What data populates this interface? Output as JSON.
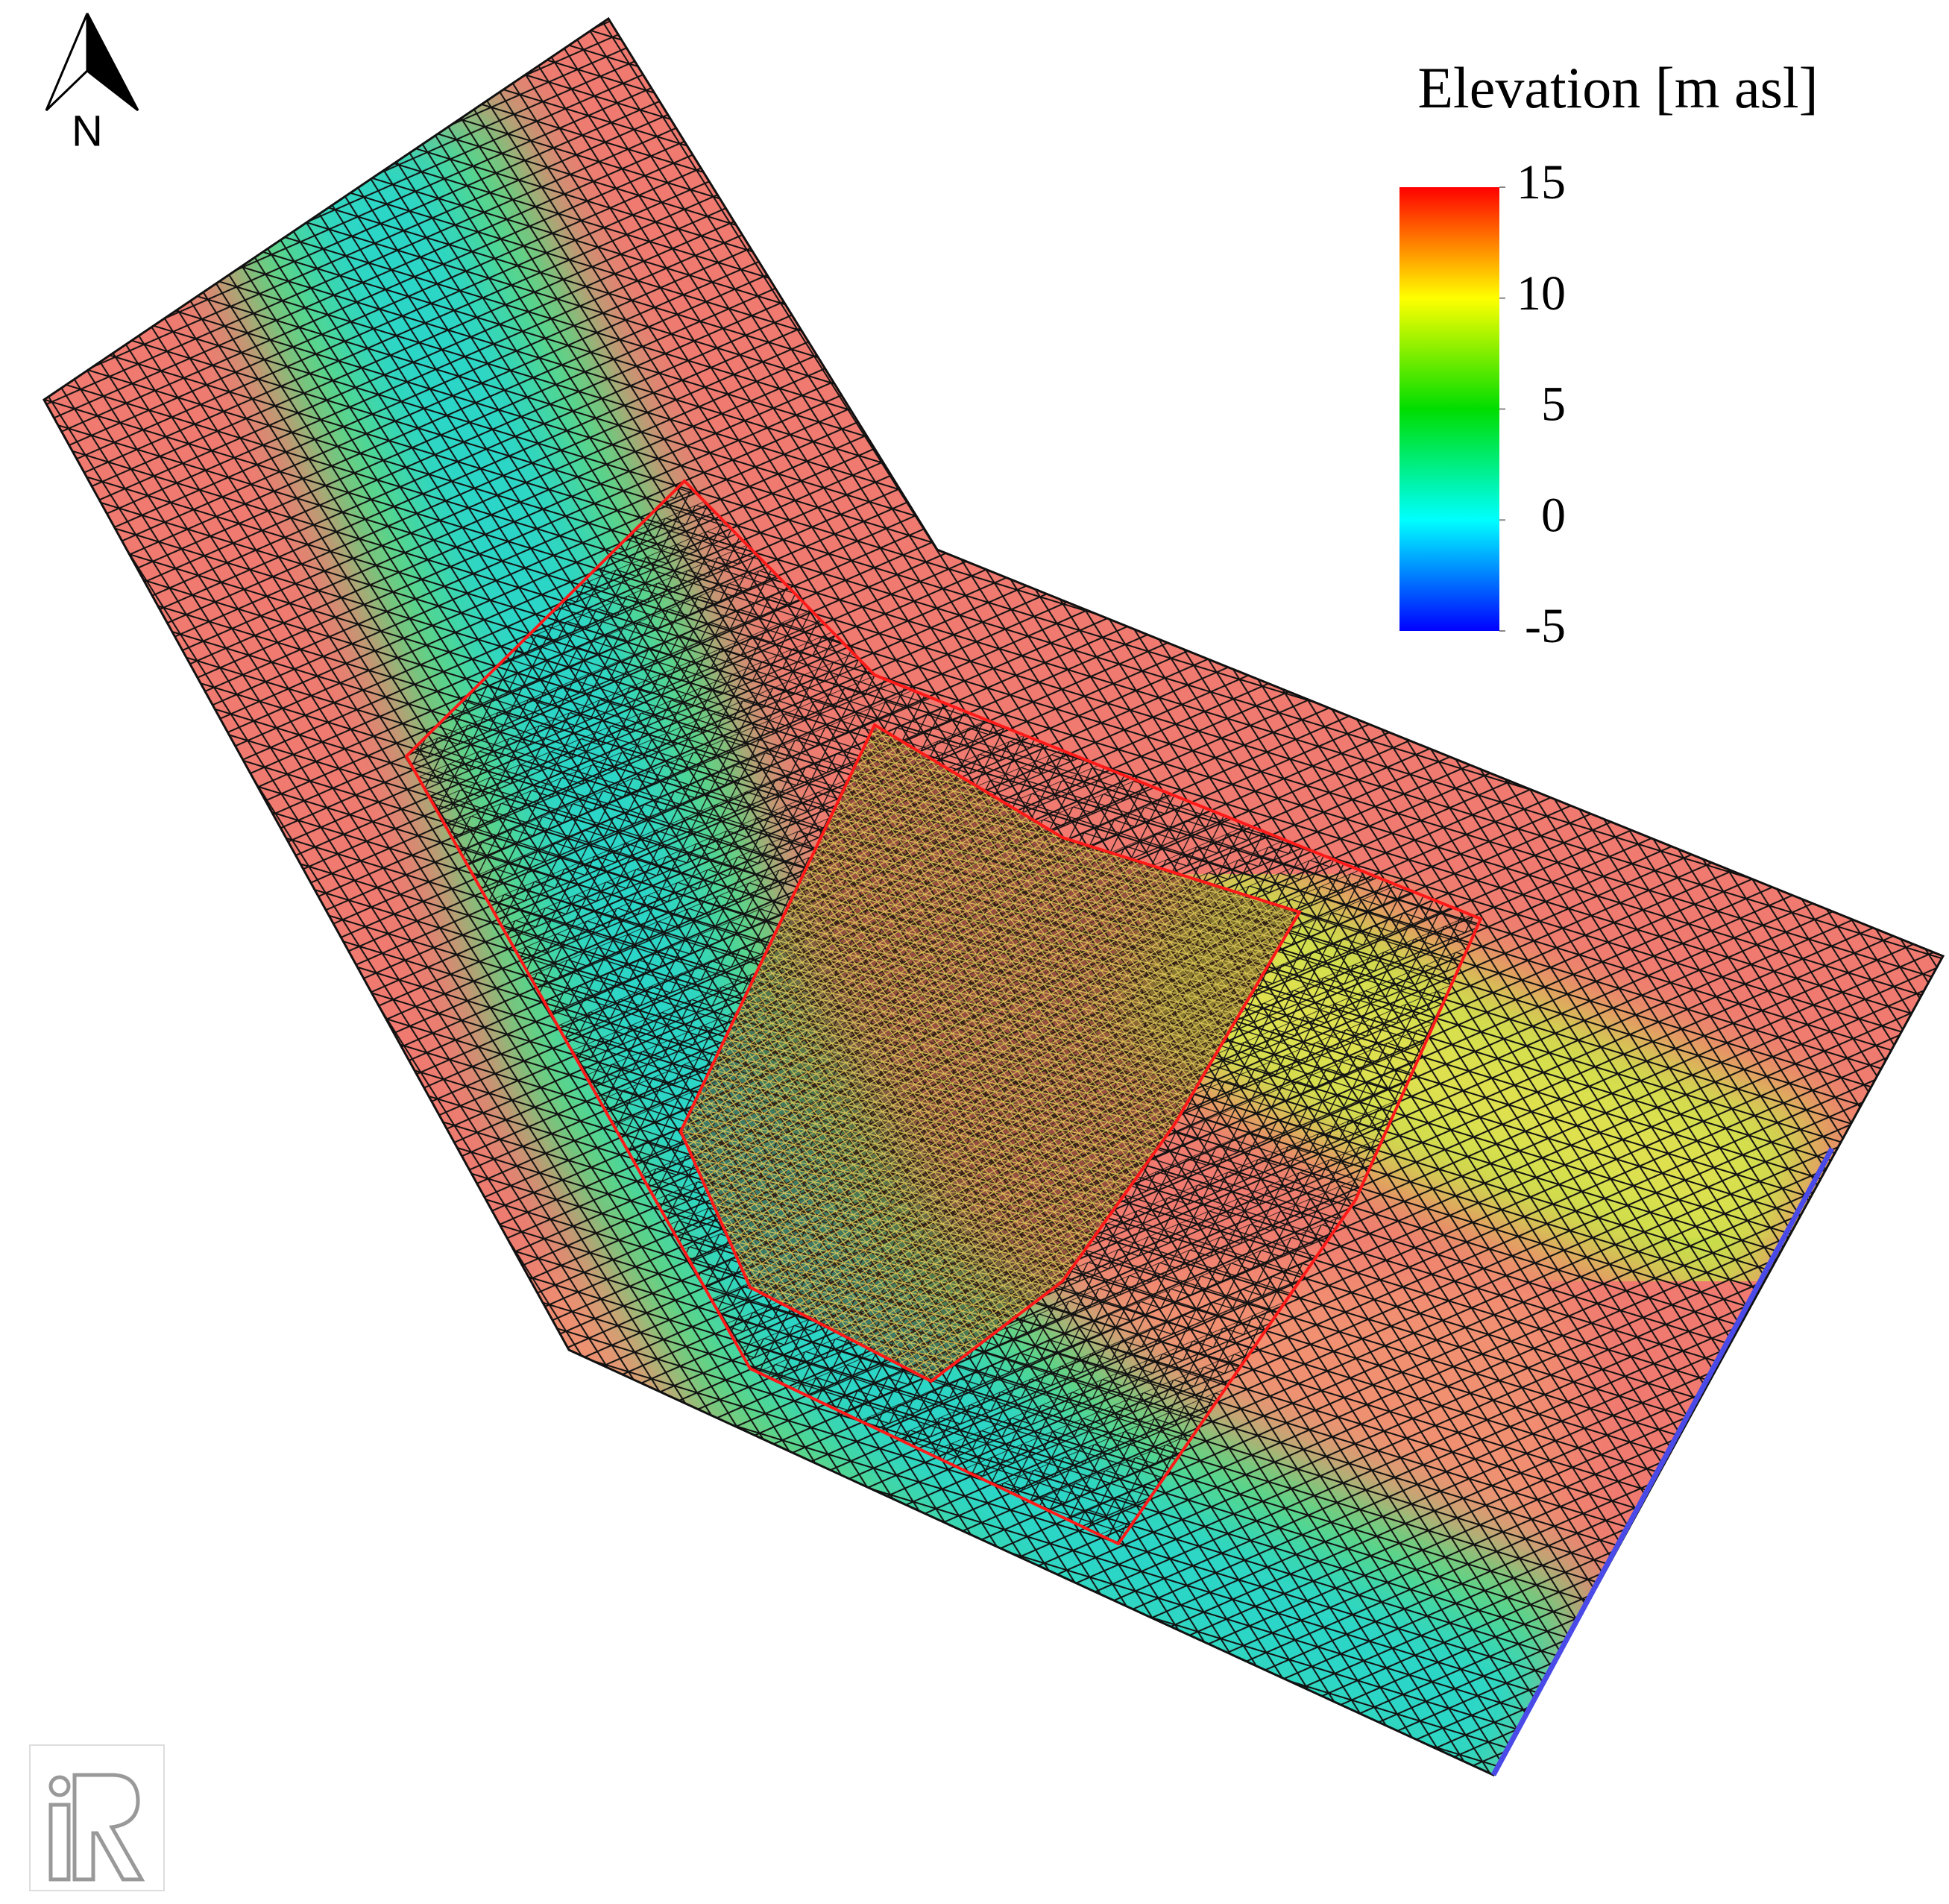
{
  "north_label": "N",
  "legend": {
    "title": "Elevation [m asl]",
    "range": [
      -5,
      15
    ],
    "ticks": [
      15,
      10,
      5,
      0,
      -5
    ]
  }
}
